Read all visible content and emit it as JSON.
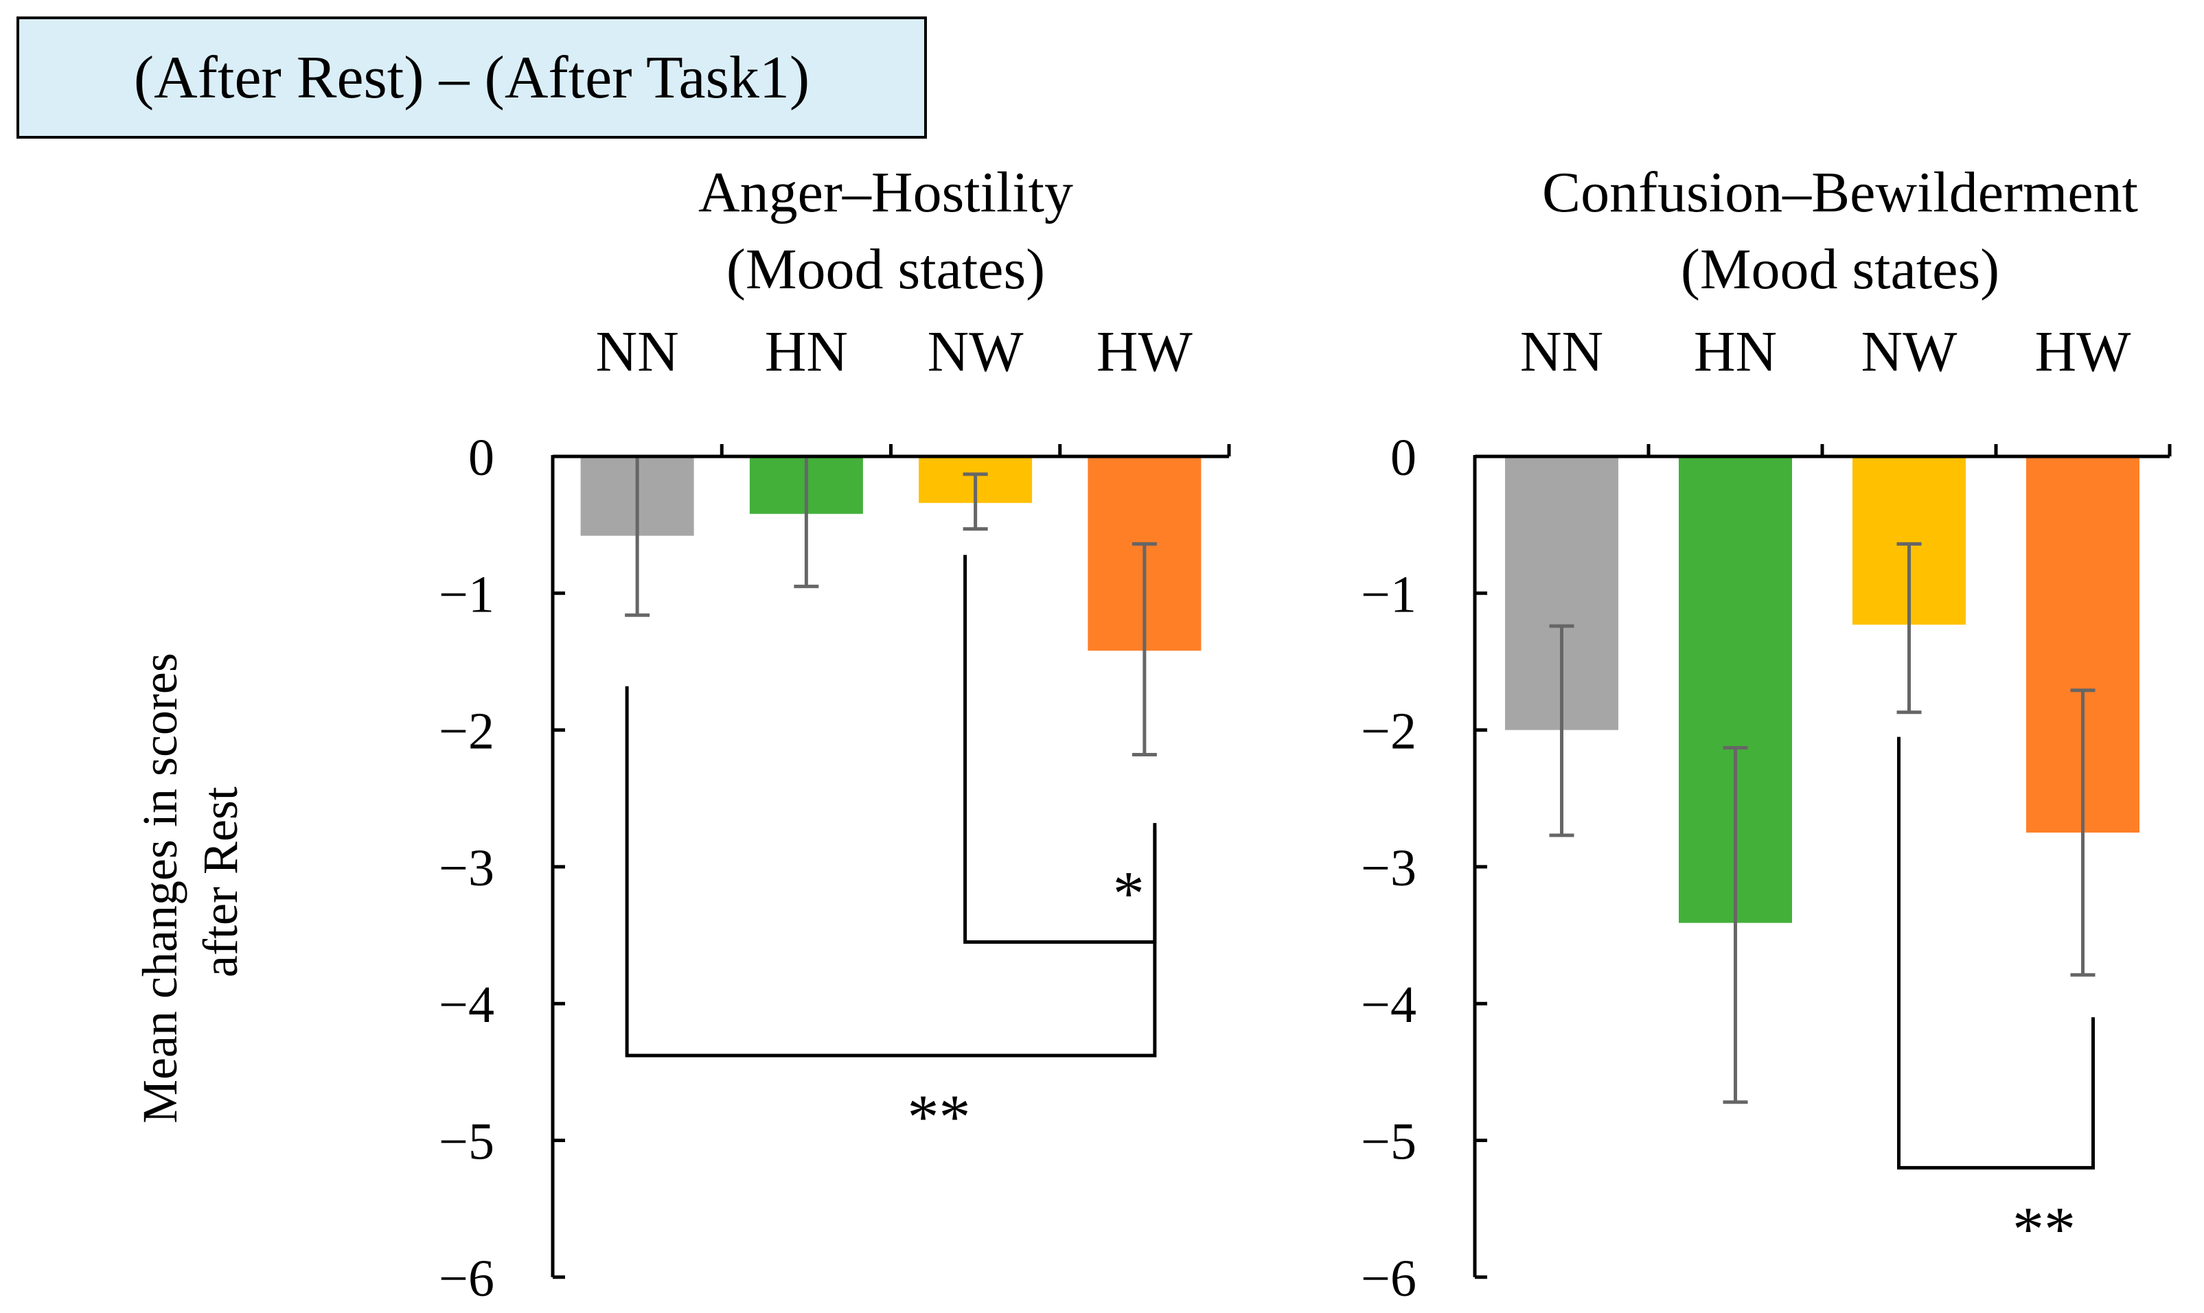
{
  "header": {
    "label": "(After Rest) – (After Task1)"
  },
  "y_axis_label": {
    "line1": "Mean changes in scores",
    "line2": "after Rest"
  },
  "colors": {
    "NN": "#a6a6a6",
    "HN": "#43b03a",
    "NW": "#ffc000",
    "HW": "#ff7f27",
    "errorbar": "#666666",
    "axis": "#000000",
    "header_bg": "#daeef8"
  },
  "chart_data": [
    {
      "type": "bar",
      "title": "Anger–Hostility",
      "subtitle": "(Mood states)",
      "categories": [
        "NN",
        "HN",
        "NW",
        "HW"
      ],
      "values": [
        -0.58,
        -0.42,
        -0.34,
        -1.42
      ],
      "error_low": [
        -1.16,
        -0.95,
        -0.53,
        -2.18
      ],
      "error_high": [
        0.0,
        0.0,
        -0.13,
        -0.64
      ],
      "xlabel": "",
      "ylabel": "Mean changes in scores after Rest",
      "ylim": [
        -6,
        0
      ],
      "yticks": [
        "0",
        "−1",
        "−2",
        "−3",
        "−4",
        "−5",
        "−6"
      ],
      "category_axis": "top",
      "significance": [
        {
          "from": "NW",
          "to": "HW",
          "label": "*",
          "from_top": -0.72,
          "to_top": -2.73,
          "bottom": -3.55
        },
        {
          "from": "NN",
          "to": "HW",
          "label": "**",
          "from_top": -1.68,
          "to_top": -2.68,
          "bottom": -4.38
        }
      ]
    },
    {
      "type": "bar",
      "title": "Confusion–Bewilderment",
      "subtitle": "(Mood states)",
      "categories": [
        "NN",
        "HN",
        "NW",
        "HW"
      ],
      "values": [
        -2.0,
        -3.41,
        -1.23,
        -2.75
      ],
      "error_low": [
        -2.77,
        -4.72,
        -1.87,
        -3.79
      ],
      "error_high": [
        -1.24,
        -2.13,
        -0.64,
        -1.71
      ],
      "xlabel": "",
      "ylabel": "",
      "ylim": [
        -6,
        0
      ],
      "yticks": [
        "0",
        "−1",
        "−2",
        "−3",
        "−4",
        "−5",
        "−6"
      ],
      "category_axis": "top",
      "significance": [
        {
          "from": "NW",
          "to": "HW",
          "label": "**",
          "from_top": -2.05,
          "to_top": -4.1,
          "bottom": -5.2
        }
      ]
    }
  ]
}
